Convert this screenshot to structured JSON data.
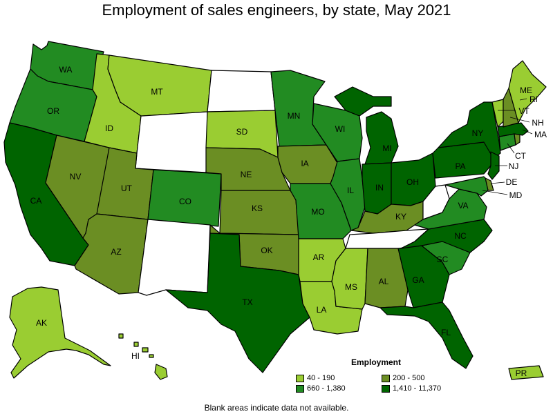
{
  "title": "Employment of sales engineers, by state, May 2021",
  "footnote": "Blank areas indicate data not available.",
  "legend": {
    "title": "Employment",
    "items": [
      {
        "label": "40 - 190",
        "color": "#9acd32"
      },
      {
        "label": "200 - 500",
        "color": "#6b8e23"
      },
      {
        "label": "660 - 1,380",
        "color": "#228b22"
      },
      {
        "label": "1,410 - 11,370",
        "color": "#006400"
      }
    ]
  },
  "colors": {
    "no_data": "#ffffff",
    "c1": "#9acd32",
    "c2": "#6b8e23",
    "c3": "#228b22",
    "c4": "#006400"
  },
  "chart_data": {
    "type": "choropleth",
    "title": "Employment of sales engineers, by state, May 2021",
    "legend_title": "Employment",
    "classes": [
      "40 - 190",
      "200 - 500",
      "660 - 1,380",
      "1,410 - 11,370"
    ],
    "states": [
      {
        "id": "WA",
        "class": "660 - 1,380"
      },
      {
        "id": "OR",
        "class": "660 - 1,380"
      },
      {
        "id": "CA",
        "class": "1,410 - 11,370"
      },
      {
        "id": "NV",
        "class": "200 - 500"
      },
      {
        "id": "ID",
        "class": "40 - 190"
      },
      {
        "id": "MT",
        "class": "40 - 190"
      },
      {
        "id": "WY",
        "class": null
      },
      {
        "id": "UT",
        "class": "200 - 500"
      },
      {
        "id": "AZ",
        "class": "200 - 500"
      },
      {
        "id": "CO",
        "class": "660 - 1,380"
      },
      {
        "id": "NM",
        "class": null
      },
      {
        "id": "ND",
        "class": null
      },
      {
        "id": "SD",
        "class": "40 - 190"
      },
      {
        "id": "NE",
        "class": "200 - 500"
      },
      {
        "id": "KS",
        "class": "200 - 500"
      },
      {
        "id": "OK",
        "class": "200 - 500"
      },
      {
        "id": "TX",
        "class": "1,410 - 11,370"
      },
      {
        "id": "MN",
        "class": "660 - 1,380"
      },
      {
        "id": "IA",
        "class": "200 - 500"
      },
      {
        "id": "MO",
        "class": "660 - 1,380"
      },
      {
        "id": "AR",
        "class": "40 - 190"
      },
      {
        "id": "LA",
        "class": "40 - 190"
      },
      {
        "id": "WI",
        "class": "660 - 1,380"
      },
      {
        "id": "IL",
        "class": "660 - 1,380"
      },
      {
        "id": "MI",
        "class": "1,410 - 11,370"
      },
      {
        "id": "IN",
        "class": "1,410 - 11,370"
      },
      {
        "id": "OH",
        "class": "1,410 - 11,370"
      },
      {
        "id": "KY",
        "class": "200 - 500"
      },
      {
        "id": "TN",
        "class": null
      },
      {
        "id": "MS",
        "class": "40 - 190"
      },
      {
        "id": "AL",
        "class": "200 - 500"
      },
      {
        "id": "GA",
        "class": "1,410 - 11,370"
      },
      {
        "id": "FL",
        "class": "1,410 - 11,370"
      },
      {
        "id": "SC",
        "class": "660 - 1,380"
      },
      {
        "id": "NC",
        "class": "1,410 - 11,370"
      },
      {
        "id": "VA",
        "class": "660 - 1,380"
      },
      {
        "id": "WV",
        "class": null
      },
      {
        "id": "PA",
        "class": "1,410 - 11,370"
      },
      {
        "id": "NY",
        "class": "1,410 - 11,370"
      },
      {
        "id": "NJ",
        "class": "1,410 - 11,370"
      },
      {
        "id": "DE",
        "class": "200 - 500"
      },
      {
        "id": "MD",
        "class": "660 - 1,380"
      },
      {
        "id": "CT",
        "class": "660 - 1,380"
      },
      {
        "id": "RI",
        "class": "200 - 500"
      },
      {
        "id": "MA",
        "class": "1,410 - 11,370"
      },
      {
        "id": "VT",
        "class": "40 - 190"
      },
      {
        "id": "NH",
        "class": "200 - 500"
      },
      {
        "id": "ME",
        "class": "40 - 190"
      },
      {
        "id": "AK",
        "class": "40 - 190"
      },
      {
        "id": "HI",
        "class": "40 - 190"
      },
      {
        "id": "PR",
        "class": "40 - 190"
      }
    ]
  }
}
